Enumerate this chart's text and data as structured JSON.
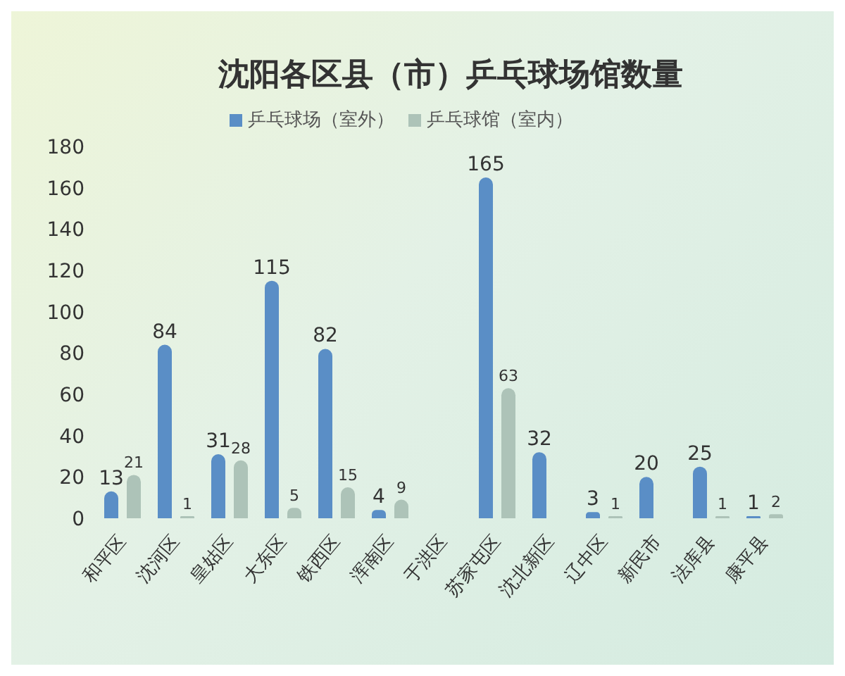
{
  "chart_data": {
    "type": "bar",
    "title": "沈阳各区县（市）乒乓球场馆数量",
    "categories": [
      "和平区",
      "沈河区",
      "皇姑区",
      "大东区",
      "铁西区",
      "浑南区",
      "于洪区",
      "苏家屯区",
      "沈北新区",
      "辽中区",
      "新民市",
      "法库县",
      "康平县"
    ],
    "series": [
      {
        "name": "乒乓球场（室外）",
        "color": "#5a8ec6",
        "values": [
          13,
          84,
          31,
          115,
          82,
          4,
          null,
          165,
          32,
          3,
          20,
          25,
          1
        ]
      },
      {
        "name": "乒乓球馆（室内）",
        "color": "#adc3b8",
        "values": [
          21,
          1,
          28,
          5,
          15,
          9,
          null,
          63,
          null,
          1,
          null,
          1,
          2
        ]
      }
    ],
    "ylim": [
      0,
      180
    ],
    "yticks": [
      0,
      20,
      40,
      60,
      80,
      100,
      120,
      140,
      160,
      180
    ],
    "legend": "top",
    "data_labels": true
  }
}
